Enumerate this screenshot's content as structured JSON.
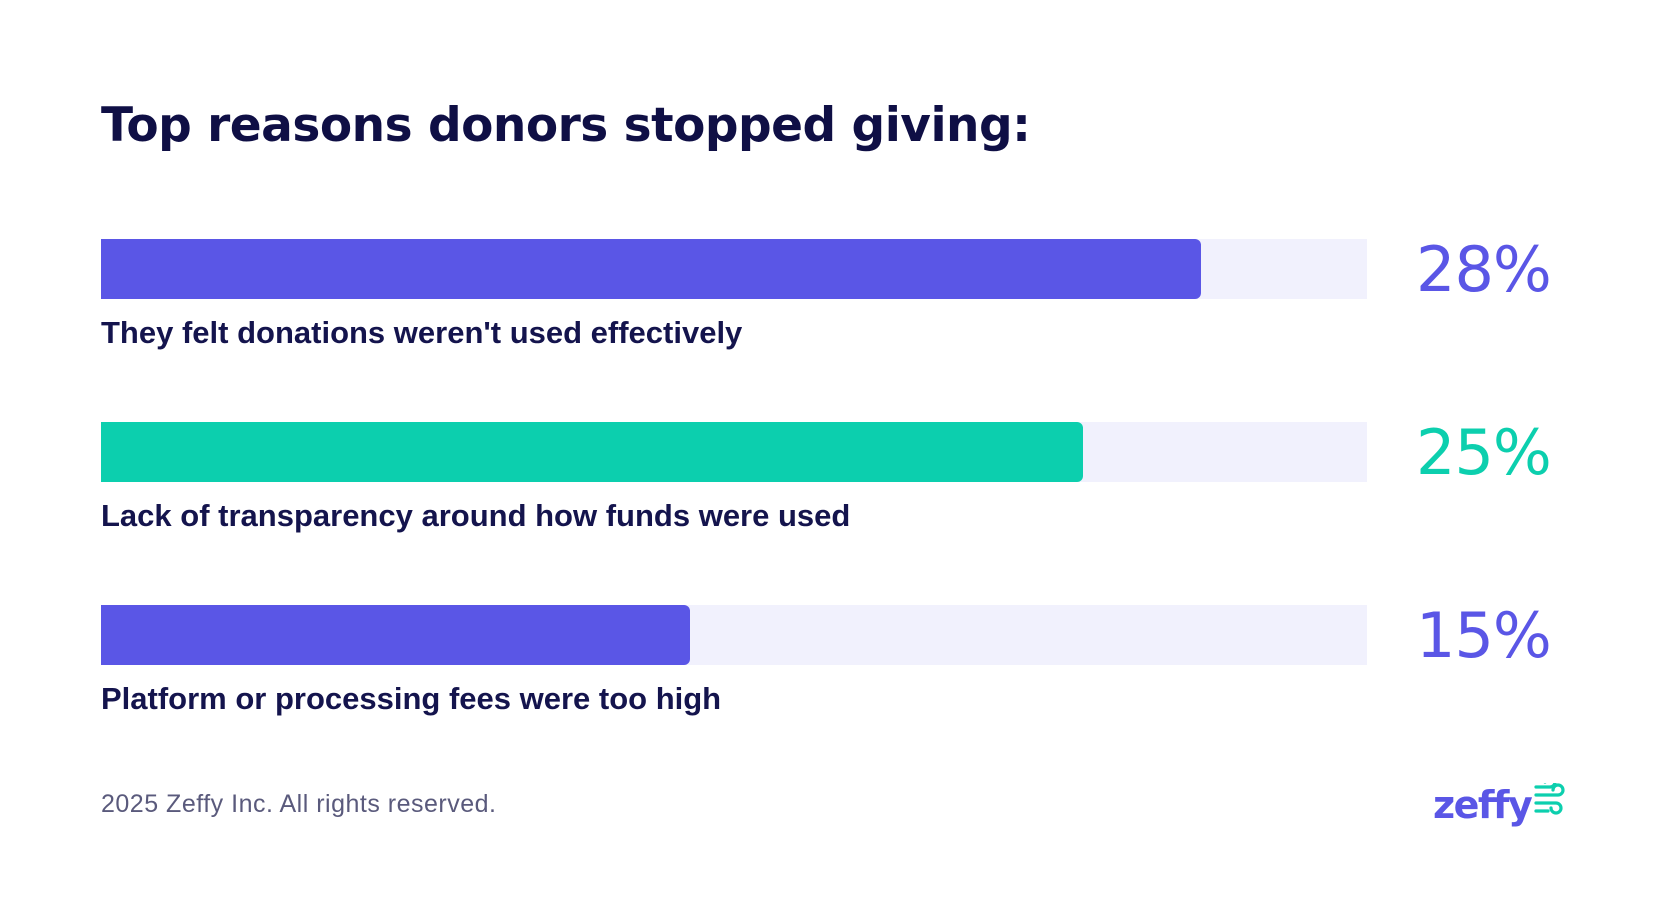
{
  "title": "Top reasons donors stopped giving:",
  "chart_data": {
    "type": "bar",
    "orientation": "horizontal",
    "title": "Top reasons donors stopped giving:",
    "categories": [
      "They felt donations weren't used effectively",
      "Lack of transparency around how funds were used",
      "Platform or processing fees were too high"
    ],
    "values": [
      28,
      25,
      15
    ],
    "value_labels": [
      "28%",
      "25%",
      "15%"
    ],
    "colors": [
      "#5a56e6",
      "#0ccfae",
      "#5a56e6"
    ],
    "track_color": "#f1f1fd",
    "grid": false
  },
  "footer": {
    "copyright": "2025 Zeffy Inc. All rights reserved."
  },
  "logo": {
    "text": "zeffy",
    "icon": "wind-icon",
    "text_color": "#5a56e6",
    "icon_color": "#0ccfae"
  }
}
